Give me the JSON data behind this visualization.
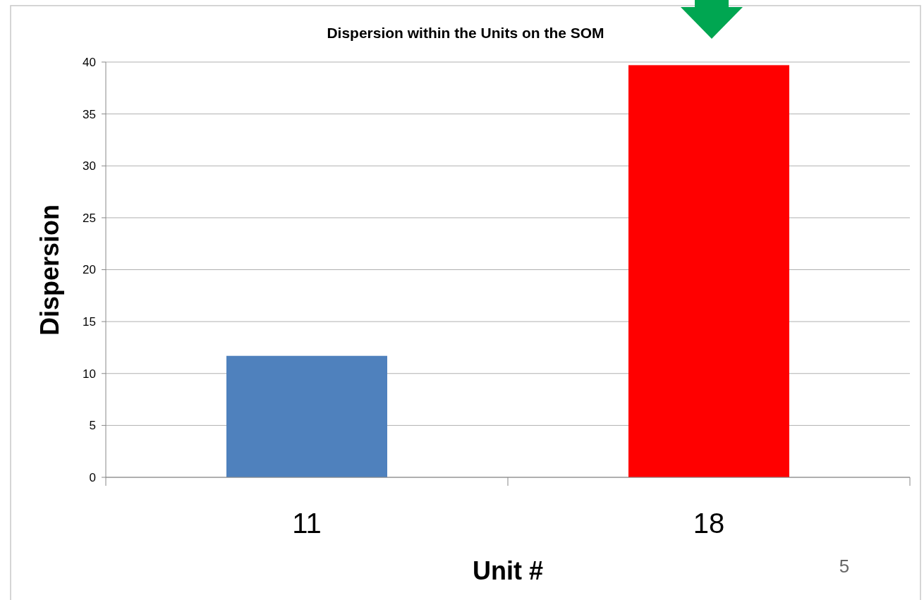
{
  "chart_data": {
    "type": "bar",
    "title": "Dispersion within the Units on the SOM",
    "xlabel": "Unit #",
    "ylabel": "Dispersion",
    "categories": [
      "11",
      "18"
    ],
    "values": [
      11.7,
      39.7
    ],
    "colors": [
      "#4f81bd",
      "#ff0000"
    ],
    "ylim": [
      0,
      40
    ],
    "yticks": [
      0,
      5,
      10,
      15,
      20,
      25,
      30,
      35,
      40
    ],
    "grid": "y",
    "annotations": [
      "5"
    ]
  }
}
